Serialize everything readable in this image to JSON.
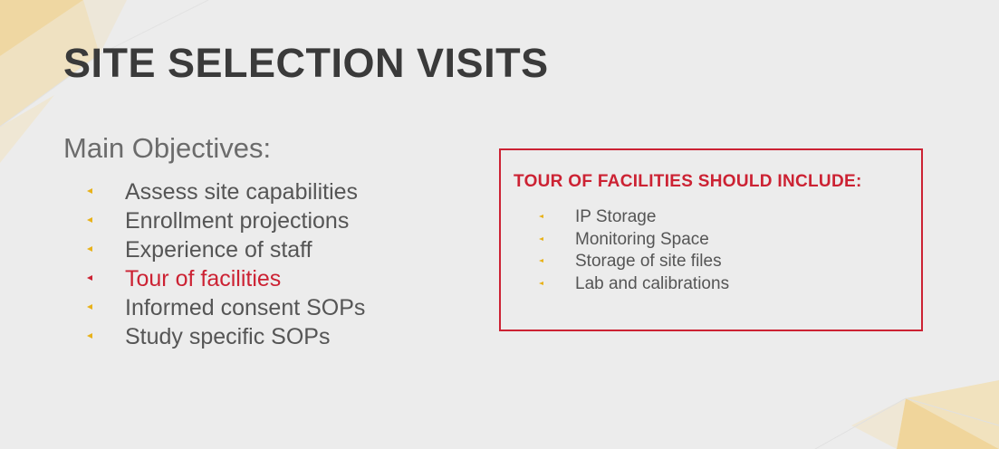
{
  "slide": {
    "title": "SITE SELECTION VISITS",
    "subtitle": "Main Objectives:",
    "objectives": [
      "Assess site capabilities",
      "Enrollment projections",
      "Experience of staff",
      "Tour of facilities",
      "Informed consent SOPs",
      "Study specific SOPs"
    ],
    "highlighted_objective": "Tour of facilities",
    "box": {
      "title": "TOUR OF FACILITIES SHOULD INCLUDE:",
      "items": [
        "IP Storage",
        "Monitoring Space",
        "Storage of site files",
        "Lab and calibrations"
      ]
    }
  },
  "colors": {
    "background": "#ececec",
    "title_text": "#3a3a3a",
    "body_text": "#555555",
    "accent_red": "#cc2233",
    "bullet_gold": "#e8b21a",
    "decor_gold": "#f3c766"
  },
  "icons": {
    "bullet": "left-pointing-triangle-icon"
  }
}
